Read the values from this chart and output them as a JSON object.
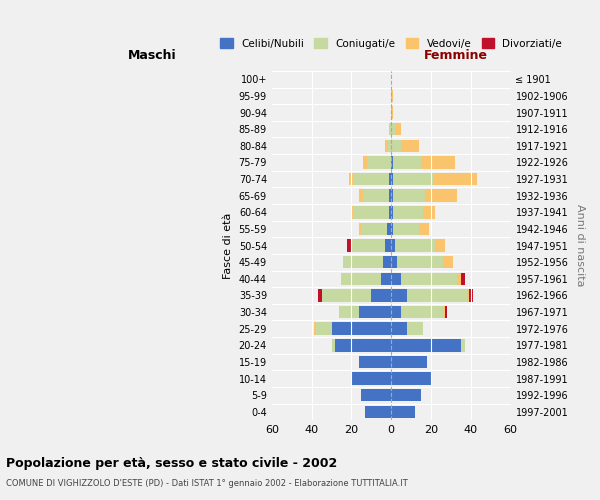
{
  "age_groups": [
    "0-4",
    "5-9",
    "10-14",
    "15-19",
    "20-24",
    "25-29",
    "30-34",
    "35-39",
    "40-44",
    "45-49",
    "50-54",
    "55-59",
    "60-64",
    "65-69",
    "70-74",
    "75-79",
    "80-84",
    "85-89",
    "90-94",
    "95-99",
    "100+"
  ],
  "birth_years": [
    "1997-2001",
    "1992-1996",
    "1987-1991",
    "1982-1986",
    "1977-1981",
    "1972-1976",
    "1967-1971",
    "1962-1966",
    "1957-1961",
    "1952-1956",
    "1947-1951",
    "1942-1946",
    "1937-1941",
    "1932-1936",
    "1927-1931",
    "1922-1926",
    "1917-1921",
    "1912-1916",
    "1907-1911",
    "1902-1906",
    "≤ 1901"
  ],
  "male": {
    "celibi": [
      13,
      15,
      20,
      16,
      28,
      30,
      16,
      10,
      5,
      4,
      3,
      2,
      1,
      1,
      1,
      0,
      0,
      0,
      0,
      0,
      0
    ],
    "coniugati": [
      0,
      0,
      0,
      0,
      2,
      8,
      10,
      25,
      20,
      20,
      17,
      13,
      18,
      13,
      18,
      12,
      2,
      1,
      0,
      0,
      0
    ],
    "vedovi": [
      0,
      0,
      0,
      0,
      0,
      1,
      0,
      0,
      0,
      0,
      0,
      1,
      1,
      2,
      2,
      2,
      1,
      0,
      0,
      0,
      0
    ],
    "divorziati": [
      0,
      0,
      0,
      0,
      0,
      0,
      0,
      2,
      0,
      0,
      2,
      0,
      0,
      0,
      0,
      0,
      0,
      0,
      0,
      0,
      0
    ]
  },
  "female": {
    "nubili": [
      12,
      15,
      20,
      18,
      35,
      8,
      5,
      8,
      5,
      3,
      2,
      1,
      1,
      1,
      1,
      1,
      0,
      0,
      0,
      0,
      0
    ],
    "coniugate": [
      0,
      0,
      0,
      0,
      2,
      8,
      21,
      30,
      28,
      23,
      20,
      13,
      15,
      16,
      20,
      14,
      5,
      2,
      0,
      0,
      0
    ],
    "vedove": [
      0,
      0,
      0,
      0,
      0,
      0,
      1,
      1,
      2,
      5,
      5,
      5,
      6,
      16,
      22,
      17,
      9,
      3,
      1,
      1,
      0
    ],
    "divorziate": [
      0,
      0,
      0,
      0,
      0,
      0,
      1,
      2,
      2,
      0,
      0,
      0,
      0,
      0,
      0,
      0,
      0,
      0,
      0,
      0,
      0
    ]
  },
  "colors": {
    "celibi": "#4472c4",
    "coniugati": "#c5d9a0",
    "vedovi": "#f9c46b",
    "divorziati": "#c0112a"
  },
  "xlim": 60,
  "title": "Popolazione per età, sesso e stato civile - 2002",
  "subtitle": "COMUNE DI VIGHIZZOLO D'ESTE (PD) - Dati ISTAT 1° gennaio 2002 - Elaborazione TUTTITALIA.IT",
  "ylabel_left": "Fasce di età",
  "ylabel_right": "Anni di nascita",
  "xlabel_left": "Maschi",
  "xlabel_right": "Femmine",
  "legend_labels": [
    "Celibi/Nubili",
    "Coniugati/e",
    "Vedovi/e",
    "Divorziati/e"
  ],
  "background_color": "#f0f0f0",
  "bar_height": 0.75
}
